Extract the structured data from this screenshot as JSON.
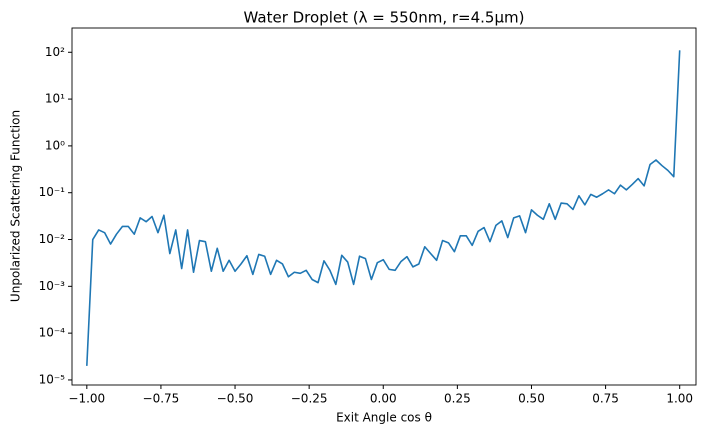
{
  "chart_data": {
    "type": "line",
    "title": "Water Droplet (λ = 550nm, r=4.5μm)",
    "x_label": "Exit Angle cos θ",
    "y_label": "Unpolarized Scattering Function",
    "y_scale": "log",
    "x": [
      -1.0,
      -0.98,
      -0.96,
      -0.94,
      -0.92,
      -0.9,
      -0.88,
      -0.86,
      -0.84,
      -0.82,
      -0.8,
      -0.78,
      -0.76,
      -0.74,
      -0.72,
      -0.7,
      -0.68,
      -0.66,
      -0.64,
      -0.62,
      -0.6,
      -0.58,
      -0.56,
      -0.54,
      -0.52,
      -0.5,
      -0.48,
      -0.46,
      -0.44,
      -0.42,
      -0.4,
      -0.38,
      -0.36,
      -0.34,
      -0.32,
      -0.3,
      -0.28,
      -0.26,
      -0.24,
      -0.22,
      -0.2,
      -0.18,
      -0.16,
      -0.14,
      -0.12,
      -0.1,
      -0.08,
      -0.06,
      -0.04,
      -0.02,
      0.0,
      0.02,
      0.04,
      0.06,
      0.08,
      0.1,
      0.12,
      0.14,
      0.16,
      0.18,
      0.2,
      0.22,
      0.24,
      0.26,
      0.28,
      0.3,
      0.32,
      0.34,
      0.36,
      0.38,
      0.4,
      0.42,
      0.44,
      0.46,
      0.48,
      0.5,
      0.52,
      0.54,
      0.56,
      0.58,
      0.6,
      0.62,
      0.64,
      0.66,
      0.68,
      0.7,
      0.72,
      0.74,
      0.76,
      0.78,
      0.8,
      0.82,
      0.84,
      0.86,
      0.88,
      0.9,
      0.92,
      0.94,
      0.96,
      0.98,
      1.0
    ],
    "series": [
      {
        "color": "#1f77b4",
        "values": [
          2e-05,
          0.01,
          0.016,
          0.014,
          0.008,
          0.013,
          0.019,
          0.019,
          0.013,
          0.029,
          0.024,
          0.031,
          0.014,
          0.033,
          0.005,
          0.016,
          0.0024,
          0.016,
          0.002,
          0.0095,
          0.009,
          0.0021,
          0.0065,
          0.0021,
          0.0036,
          0.0021,
          0.003,
          0.0045,
          0.0018,
          0.0048,
          0.0044,
          0.0018,
          0.0036,
          0.003,
          0.0016,
          0.002,
          0.0019,
          0.0022,
          0.0014,
          0.0012,
          0.0035,
          0.0022,
          0.0011,
          0.0046,
          0.0033,
          0.0011,
          0.0044,
          0.0039,
          0.0014,
          0.0032,
          0.0037,
          0.0023,
          0.0022,
          0.0034,
          0.0043,
          0.0026,
          0.003,
          0.007,
          0.005,
          0.0036,
          0.0095,
          0.0085,
          0.0055,
          0.012,
          0.012,
          0.0075,
          0.015,
          0.018,
          0.009,
          0.02,
          0.025,
          0.011,
          0.029,
          0.032,
          0.014,
          0.043,
          0.033,
          0.027,
          0.058,
          0.027,
          0.06,
          0.058,
          0.044,
          0.086,
          0.055,
          0.092,
          0.08,
          0.095,
          0.115,
          0.095,
          0.145,
          0.115,
          0.15,
          0.2,
          0.14,
          0.4,
          0.5,
          0.38,
          0.3,
          0.22,
          110
        ]
      }
    ],
    "xlim": [
      -1.05,
      1.055
    ],
    "ylim": [
      7.8e-06,
      330
    ],
    "xticks": [
      {
        "value": -1,
        "label": "−1.00"
      },
      {
        "value": -0.75,
        "label": "−0.75"
      },
      {
        "value": -0.5,
        "label": "−0.50"
      },
      {
        "value": -0.25,
        "label": "−0.25"
      },
      {
        "value": 0,
        "label": "0.00"
      },
      {
        "value": 0.25,
        "label": "0.25"
      },
      {
        "value": 0.5,
        "label": "0.50"
      },
      {
        "value": 0.75,
        "label": "0.75"
      },
      {
        "value": 1,
        "label": "1.00"
      }
    ],
    "yticks": [
      {
        "value": 1e-05,
        "label": "10⁻⁵"
      },
      {
        "value": 0.0001,
        "label": "10⁻⁴"
      },
      {
        "value": 0.001,
        "label": "10⁻³"
      },
      {
        "value": 0.01,
        "label": "10⁻²"
      },
      {
        "value": 0.1,
        "label": "10⁻¹"
      },
      {
        "value": 1,
        "label": "10⁰"
      },
      {
        "value": 10,
        "label": "10¹"
      },
      {
        "value": 100,
        "label": "10²"
      }
    ]
  }
}
